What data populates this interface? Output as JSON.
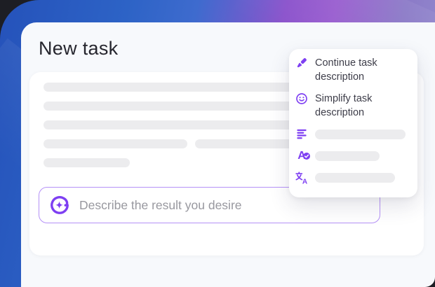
{
  "page": {
    "title": "New task"
  },
  "editor": {
    "skeleton_rows": [
      [
        516
      ],
      [
        516
      ],
      [
        516
      ],
      [
        205,
        300
      ],
      [
        123
      ]
    ]
  },
  "prompt": {
    "placeholder": "Describe the result you desire",
    "icon": "ai-sparkle-icon"
  },
  "menu": {
    "items": [
      {
        "icon": "pen-icon",
        "label": "Continue task description"
      },
      {
        "icon": "smiley-icon",
        "label": "Simplify task description"
      },
      {
        "icon": "align-left-icon",
        "label": "",
        "skeleton_width": 129
      },
      {
        "icon": "spellcheck-icon",
        "label": "A",
        "skeleton_width": 92
      },
      {
        "icon": "translate-icon",
        "label": "A",
        "skeleton_width": 114
      }
    ]
  },
  "colors": {
    "accent": "#7e3ff2",
    "input_border": "#b591f7",
    "skeleton": "#ececee",
    "card_bg": "#f7f9fc",
    "gradient_blue": "#2d63c6",
    "gradient_purple": "#9a5fd0"
  }
}
